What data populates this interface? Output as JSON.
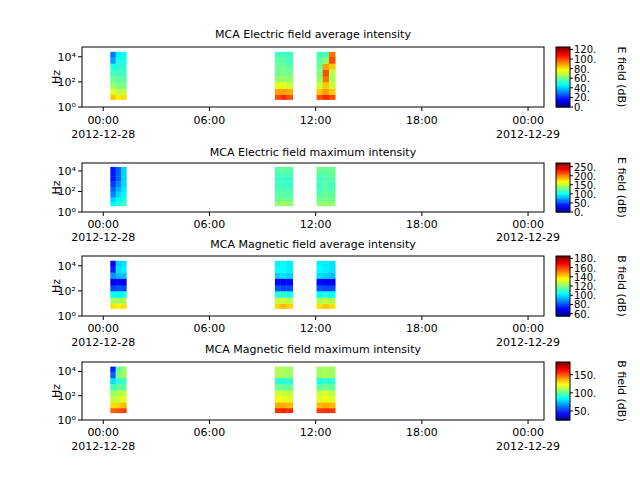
{
  "chart_data": [
    {
      "type": "heatmap",
      "title": "MCA  Electric field average intensity",
      "ylabel": "Hz",
      "log": "y",
      "xlim": [
        -1.2,
        24.9
      ],
      "xticks": [
        {
          "value": 0,
          "label": "00:00"
        },
        {
          "value": 6,
          "label": "06:00"
        },
        {
          "value": 12,
          "label": "12:00"
        },
        {
          "value": 18,
          "label": "18:00"
        },
        {
          "value": 24,
          "label": "00:00"
        }
      ],
      "x_date_labels": [
        {
          "value": 0,
          "label": "2012-12-28"
        },
        {
          "value": 24,
          "label": "2012-12-29"
        }
      ],
      "ylim": [
        1,
        60000
      ],
      "yticks": [
        {
          "value": 1,
          "label": "10⁰"
        },
        {
          "value": 100,
          "label": "10²"
        },
        {
          "value": 10000,
          "label": "10⁴"
        }
      ],
      "time_bins": [
        [
          0.4,
          0.7
        ],
        [
          0.7,
          1.0
        ],
        [
          1.0,
          1.3
        ],
        [
          9.7,
          10.0
        ],
        [
          10.0,
          10.35
        ],
        [
          10.35,
          10.7
        ],
        [
          12.05,
          12.4
        ],
        [
          12.4,
          12.75
        ],
        [
          12.75,
          13.1
        ]
      ],
      "freq_bins": [
        4,
        10,
        30,
        100,
        300,
        1000,
        3000,
        10000,
        25000
      ],
      "cells": [
        [
          85,
          75,
          65,
          60,
          55,
          50,
          35,
          30
        ],
        [
          80,
          70,
          62,
          58,
          55,
          52,
          50,
          45
        ],
        [
          82,
          70,
          62,
          58,
          55,
          52,
          50,
          48
        ],
        [
          100,
          90,
          75,
          65,
          60,
          60,
          58,
          55
        ],
        [
          105,
          90,
          75,
          65,
          62,
          60,
          58,
          55
        ],
        [
          100,
          88,
          72,
          65,
          60,
          58,
          55,
          55
        ],
        [
          100,
          85,
          72,
          65,
          62,
          60,
          58,
          55
        ],
        [
          105,
          90,
          85,
          95,
          100,
          90,
          65,
          55
        ],
        [
          100,
          85,
          72,
          68,
          70,
          85,
          100,
          95
        ]
      ],
      "colorbar": {
        "label": "E field (dB)",
        "range": [
          0,
          125
        ],
        "ticks": [
          {
            "value": 0,
            "label": "0."
          },
          {
            "value": 20,
            "label": "20."
          },
          {
            "value": 40,
            "label": "40."
          },
          {
            "value": 60,
            "label": "60."
          },
          {
            "value": 80,
            "label": "80."
          },
          {
            "value": 100,
            "label": "100."
          },
          {
            "value": 120,
            "label": "120."
          }
        ]
      }
    },
    {
      "type": "heatmap",
      "title": "MCA  Electric field maximum intensity",
      "ylabel": "Hz",
      "log": "y",
      "xlim": [
        -1.2,
        24.9
      ],
      "xticks": [
        {
          "value": 0,
          "label": "00:00"
        },
        {
          "value": 6,
          "label": "06:00"
        },
        {
          "value": 12,
          "label": "12:00"
        },
        {
          "value": 18,
          "label": "18:00"
        },
        {
          "value": 24,
          "label": "00:00"
        }
      ],
      "x_date_labels": [
        {
          "value": 0,
          "label": "2012-12-28"
        },
        {
          "value": 24,
          "label": "2012-12-29"
        }
      ],
      "ylim": [
        1,
        60000
      ],
      "yticks": [
        {
          "value": 1,
          "label": "10⁰"
        },
        {
          "value": 100,
          "label": "10²"
        },
        {
          "value": 10000,
          "label": "10⁴"
        }
      ],
      "time_bins": [
        [
          0.4,
          0.7
        ],
        [
          0.7,
          1.0
        ],
        [
          1.0,
          1.3
        ],
        [
          9.7,
          10.0
        ],
        [
          10.0,
          10.35
        ],
        [
          10.35,
          10.7
        ],
        [
          12.05,
          12.4
        ],
        [
          12.4,
          12.75
        ],
        [
          12.75,
          13.1
        ]
      ],
      "freq_bins": [
        4,
        10,
        30,
        100,
        300,
        1000,
        3000,
        10000,
        25000
      ],
      "cells": [
        [
          100,
          90,
          70,
          60,
          50,
          40,
          40,
          40
        ],
        [
          110,
          100,
          90,
          80,
          70,
          60,
          60,
          60
        ],
        [
          120,
          110,
          100,
          95,
          90,
          90,
          90,
          90
        ],
        [
          140,
          130,
          125,
          120,
          118,
          115,
          120,
          125
        ],
        [
          145,
          132,
          125,
          122,
          118,
          116,
          122,
          128
        ],
        [
          140,
          130,
          124,
          120,
          116,
          115,
          120,
          125
        ],
        [
          140,
          130,
          125,
          120,
          118,
          118,
          125,
          130
        ],
        [
          142,
          132,
          128,
          125,
          125,
          122,
          125,
          130
        ],
        [
          140,
          130,
          126,
          122,
          120,
          124,
          128,
          130
        ]
      ],
      "colorbar": {
        "label": "E field (dB)",
        "range": [
          0,
          270
        ],
        "ticks": [
          {
            "value": 0,
            "label": "0."
          },
          {
            "value": 50,
            "label": "50."
          },
          {
            "value": 100,
            "label": "100."
          },
          {
            "value": 150,
            "label": "150."
          },
          {
            "value": 200,
            "label": "200."
          },
          {
            "value": 250,
            "label": "250."
          }
        ]
      }
    },
    {
      "type": "heatmap",
      "title": "MCA  Magnetic field average intensity",
      "ylabel": "Hz",
      "log": "y",
      "xlim": [
        -1.2,
        24.9
      ],
      "xticks": [
        {
          "value": 0,
          "label": "00:00"
        },
        {
          "value": 6,
          "label": "06:00"
        },
        {
          "value": 12,
          "label": "12:00"
        },
        {
          "value": 18,
          "label": "18:00"
        },
        {
          "value": 24,
          "label": "00:00"
        }
      ],
      "x_date_labels": [
        {
          "value": 0,
          "label": "2012-12-28"
        },
        {
          "value": 24,
          "label": "2012-12-29"
        }
      ],
      "ylim": [
        1,
        60000
      ],
      "yticks": [
        {
          "value": 1,
          "label": "10⁰"
        },
        {
          "value": 100,
          "label": "10²"
        },
        {
          "value": 10000,
          "label": "10⁴"
        }
      ],
      "time_bins": [
        [
          0.4,
          0.7
        ],
        [
          0.7,
          1.0
        ],
        [
          1.0,
          1.3
        ],
        [
          9.7,
          10.0
        ],
        [
          10.0,
          10.35
        ],
        [
          10.35,
          10.7
        ],
        [
          12.05,
          12.4
        ],
        [
          12.4,
          12.75
        ],
        [
          12.75,
          13.1
        ]
      ],
      "freq_bins": [
        4,
        10,
        30,
        100,
        300,
        1000,
        3000,
        10000,
        25000
      ],
      "cells": [
        [
          140,
          125,
          105,
          80,
          70,
          90,
          75,
          70
        ],
        [
          138,
          124,
          104,
          82,
          72,
          95,
          100,
          98
        ],
        [
          140,
          126,
          106,
          80,
          70,
          96,
          102,
          100
        ],
        [
          142,
          128,
          108,
          82,
          72,
          98,
          104,
          102
        ],
        [
          145,
          130,
          110,
          80,
          70,
          100,
          104,
          104
        ],
        [
          142,
          128,
          106,
          80,
          72,
          98,
          102,
          102
        ],
        [
          140,
          126,
          105,
          82,
          72,
          100,
          104,
          102
        ],
        [
          143,
          128,
          108,
          80,
          70,
          98,
          102,
          102
        ],
        [
          140,
          126,
          104,
          80,
          70,
          96,
          100,
          100
        ]
      ],
      "colorbar": {
        "label": "B field (dB)",
        "range": [
          55,
          185
        ],
        "ticks": [
          {
            "value": 60,
            "label": "60."
          },
          {
            "value": 80,
            "label": "80."
          },
          {
            "value": 100,
            "label": "100."
          },
          {
            "value": 120,
            "label": "120."
          },
          {
            "value": 140,
            "label": "140."
          },
          {
            "value": 160,
            "label": "160."
          },
          {
            "value": 180,
            "label": "180."
          }
        ]
      }
    },
    {
      "type": "heatmap",
      "title": "MCA  Magnetic field maximum intensity",
      "ylabel": "Hz",
      "log": "y",
      "xlim": [
        -1.2,
        24.9
      ],
      "xticks": [
        {
          "value": 0,
          "label": "00:00"
        },
        {
          "value": 6,
          "label": "06:00"
        },
        {
          "value": 12,
          "label": "12:00"
        },
        {
          "value": 18,
          "label": "18:00"
        },
        {
          "value": 24,
          "label": "00:00"
        }
      ],
      "x_date_labels": [
        {
          "value": 0,
          "label": "2012-12-28"
        },
        {
          "value": 24,
          "label": "2012-12-29"
        }
      ],
      "ylim": [
        1,
        60000
      ],
      "yticks": [
        {
          "value": 1,
          "label": "10⁰"
        },
        {
          "value": 100,
          "label": "10²"
        },
        {
          "value": 10000,
          "label": "10⁴"
        }
      ],
      "time_bins": [
        [
          0.4,
          0.7
        ],
        [
          0.7,
          1.0
        ],
        [
          1.0,
          1.3
        ],
        [
          9.7,
          10.0
        ],
        [
          10.0,
          10.35
        ],
        [
          10.35,
          10.7
        ],
        [
          12.05,
          12.4
        ],
        [
          12.4,
          12.75
        ],
        [
          12.75,
          13.1
        ]
      ],
      "freq_bins": [
        4,
        10,
        30,
        100,
        300,
        1000,
        3000,
        10000,
        25000
      ],
      "cells": [
        [
          150,
          130,
          115,
          110,
          95,
          80,
          60,
          50
        ],
        [
          152,
          132,
          118,
          112,
          100,
          92,
          105,
          100
        ],
        [
          155,
          135,
          120,
          115,
          100,
          95,
          110,
          108
        ],
        [
          158,
          138,
          122,
          118,
          102,
          92,
          112,
          112
        ],
        [
          160,
          138,
          122,
          116,
          100,
          90,
          112,
          112
        ],
        [
          158,
          136,
          120,
          115,
          100,
          92,
          110,
          110
        ],
        [
          156,
          136,
          120,
          116,
          100,
          90,
          110,
          110
        ],
        [
          158,
          138,
          122,
          118,
          102,
          92,
          112,
          112
        ],
        [
          156,
          136,
          120,
          115,
          100,
          92,
          110,
          110
        ]
      ],
      "colorbar": {
        "label": "B field (dB)",
        "range": [
          25,
          185
        ],
        "ticks": [
          {
            "value": 50,
            "label": "50."
          },
          {
            "value": 100,
            "label": "100."
          },
          {
            "value": 150,
            "label": "150."
          }
        ]
      }
    }
  ]
}
